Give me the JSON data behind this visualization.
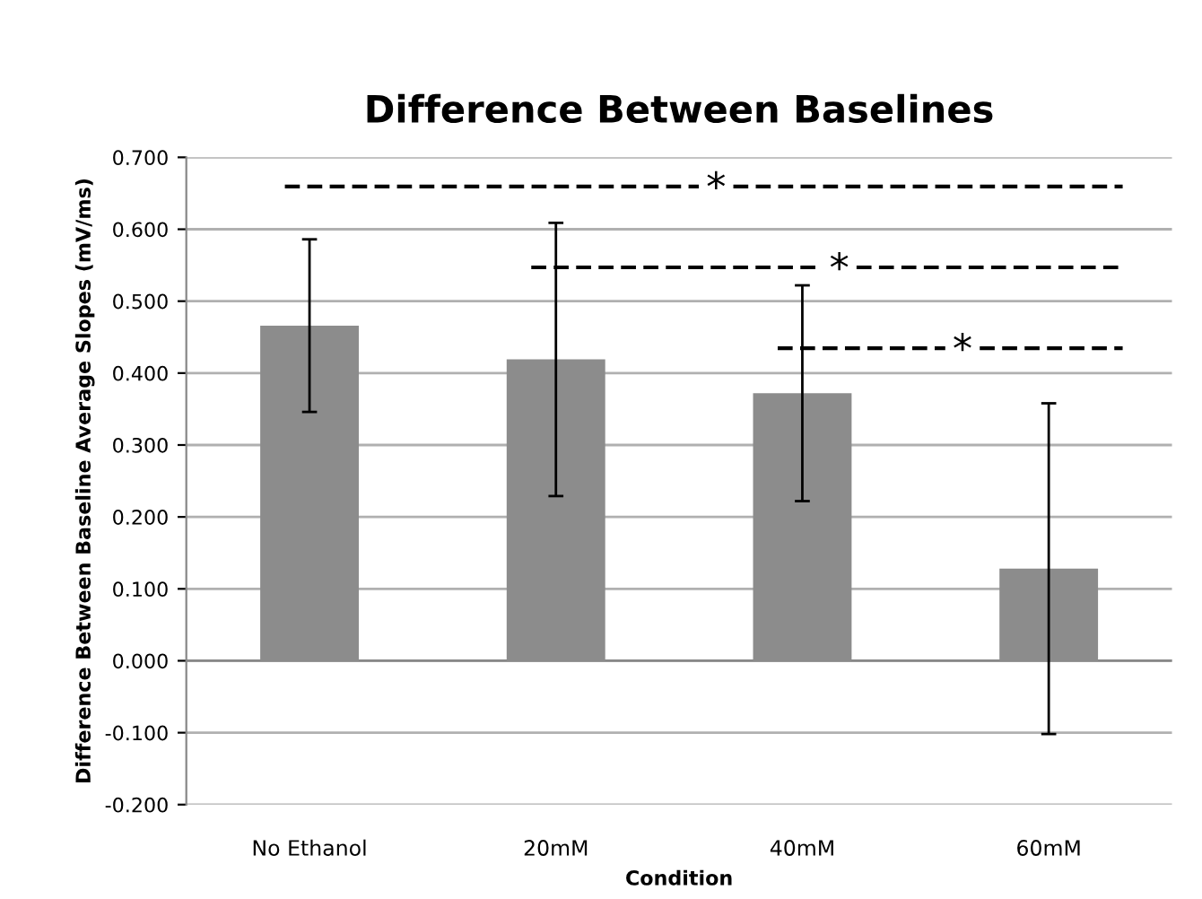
{
  "chart_data": {
    "type": "bar",
    "title": "Difference Between Baselines",
    "xlabel": "Condition",
    "ylabel": "Difference Between Baseline Average Slopes (mV/ms)",
    "categories": [
      "No Ethanol",
      "20mM",
      "40mM",
      "60mM"
    ],
    "values": [
      0.466,
      0.419,
      0.372,
      0.128
    ],
    "errors": [
      0.12,
      0.19,
      0.15,
      0.23
    ],
    "color": "#8c8c8c",
    "ylim": [
      -0.2,
      0.7
    ],
    "yticks": [
      {
        "value": -0.2,
        "label": "-0.200"
      },
      {
        "value": -0.1,
        "label": "-0.100"
      },
      {
        "value": 0,
        "label": "0.000"
      },
      {
        "value": 0.1,
        "label": "0.100"
      },
      {
        "value": 0.2,
        "label": "0.200"
      },
      {
        "value": 0.3,
        "label": "0.300"
      },
      {
        "value": 0.4,
        "label": "0.400"
      },
      {
        "value": 0.5,
        "label": "0.500"
      },
      {
        "value": 0.6,
        "label": "0.600"
      },
      {
        "value": 0.7,
        "label": "0.700"
      }
    ],
    "grid": "y",
    "annotations": [
      "*",
      "*",
      "*"
    ]
  }
}
